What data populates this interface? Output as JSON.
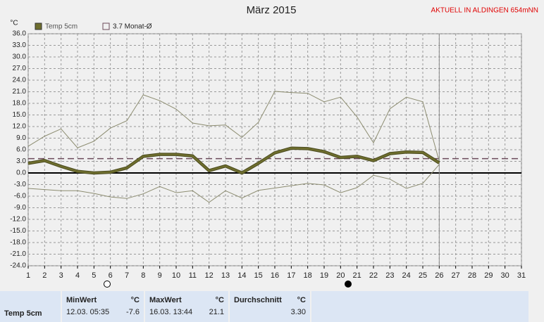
{
  "chart_data": {
    "type": "line",
    "title": "März 2015",
    "banner": "AKTUELL IN ALDINGEN 654mNN",
    "ylabel": "°C",
    "x": [
      1,
      2,
      3,
      4,
      5,
      6,
      7,
      8,
      9,
      10,
      11,
      12,
      13,
      14,
      15,
      16,
      17,
      18,
      19,
      20,
      21,
      22,
      23,
      24,
      25,
      26
    ],
    "series": [
      {
        "name": "Temp 5cm",
        "color": "#6e6e2e",
        "values": [
          2.5,
          3.2,
          1.7,
          0.4,
          0,
          0.2,
          1.3,
          4.3,
          4.8,
          4.8,
          4.4,
          0.6,
          1.8,
          0,
          2.5,
          5.2,
          6.4,
          6.3,
          5.5,
          4.0,
          4.3,
          3.2,
          5.0,
          5.4,
          5.3,
          2.6
        ]
      },
      {
        "color": "#8c8c70",
        "values": [
          6.9,
          9.5,
          11.4,
          6.5,
          8.2,
          11.6,
          13.5,
          20.2,
          18.7,
          16.5,
          12.9,
          12.2,
          12.4,
          9.2,
          13.1,
          21.1,
          20.8,
          20.6,
          18.4,
          19.6,
          14.5,
          7.8,
          16.6,
          19.6,
          18.4,
          3.0
        ]
      },
      {
        "color": "#8c8c70",
        "values": [
          -4.0,
          -4.3,
          -4.6,
          -4.6,
          -5.3,
          -6.2,
          -6.6,
          -5.4,
          -3.5,
          -5.1,
          -4.6,
          -7.6,
          -4.6,
          -6.5,
          -4.5,
          -3.9,
          -3.3,
          -2.7,
          -3.1,
          -5.1,
          -3.8,
          -0.6,
          -1.6,
          -4.0,
          -2.7,
          2.2
        ]
      }
    ],
    "reference": {
      "label": "3.7 Monat-Ø",
      "value": 3.7,
      "color": "#6b4a5a"
    },
    "xlim": [
      1,
      31
    ],
    "xticks": [
      1,
      2,
      3,
      4,
      5,
      6,
      7,
      8,
      9,
      10,
      11,
      12,
      13,
      14,
      15,
      16,
      17,
      18,
      19,
      20,
      21,
      22,
      23,
      24,
      25,
      26,
      27,
      28,
      29,
      30,
      31
    ],
    "ylim": [
      -24,
      36
    ],
    "yticks": [
      {
        "value": 36,
        "label": "36.0"
      },
      {
        "value": 33,
        "label": "33.0"
      },
      {
        "value": 30,
        "label": "30.0"
      },
      {
        "value": 27,
        "label": "27.0"
      },
      {
        "value": 24,
        "label": "24.0"
      },
      {
        "value": 21,
        "label": "21.0"
      },
      {
        "value": 18,
        "label": "18.0"
      },
      {
        "value": 15,
        "label": "15.0"
      },
      {
        "value": 12,
        "label": "12.0"
      },
      {
        "value": 9,
        "label": "9.0"
      },
      {
        "value": 6,
        "label": "6.0"
      },
      {
        "value": 3,
        "label": "3.0"
      },
      {
        "value": 0,
        "label": "0.0"
      },
      {
        "value": -3,
        "label": "-3.0"
      },
      {
        "value": -6,
        "label": "-6.0"
      },
      {
        "value": -9,
        "label": "-9.0"
      },
      {
        "value": -12,
        "label": "-12.0"
      },
      {
        "value": -15,
        "label": "-15.0"
      },
      {
        "value": -18,
        "label": "-18.0"
      },
      {
        "value": -21,
        "label": "-21.0"
      },
      {
        "value": -24,
        "label": "-24.0"
      }
    ],
    "grid": true,
    "current_x": 26
  },
  "table": {
    "row_label": "Temp 5cm",
    "min": {
      "header": "MinWert",
      "unit": "°C",
      "time": "12.03.  05:35",
      "value": "-7.6"
    },
    "max": {
      "header": "MaxWert",
      "unit": "°C",
      "time": "16.03.  13:44",
      "value": "21.1"
    },
    "avg": {
      "header": "Durchschnitt",
      "unit": "°C",
      "value": "3.30"
    }
  }
}
